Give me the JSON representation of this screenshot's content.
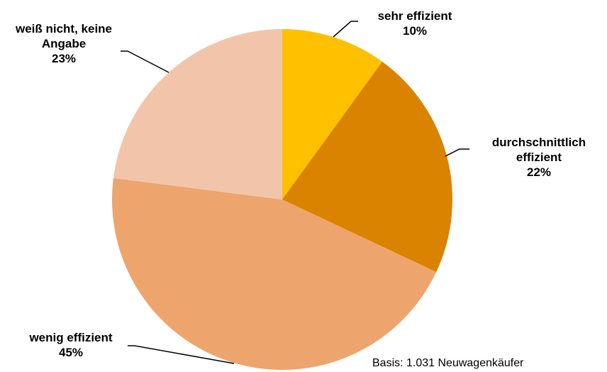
{
  "chart_data": {
    "type": "pie",
    "categories": [
      "sehr effizient",
      "durchschnittlich effizient",
      "wenig effizient",
      "weiß nicht, keine Angabe"
    ],
    "values": [
      10,
      22,
      45,
      23
    ],
    "value_labels": [
      "10%",
      "22%",
      "45%",
      "23%"
    ],
    "colors": [
      "#FFC000",
      "#D98300",
      "#EDA46D",
      "#F2C5AA"
    ],
    "note": "Basis: 1.031 Neuwagenkäufer"
  }
}
